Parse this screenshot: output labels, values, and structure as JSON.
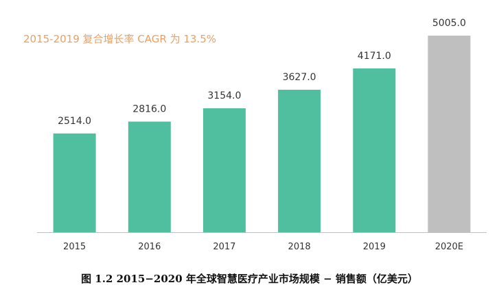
{
  "annotation": "2015-2019 复合增长率 CAGR 为 13.5%",
  "caption": "图 1.2 2015−2020 年全球智慧医疗产业市场规模 − 销售额（亿美元）",
  "chart_data": {
    "type": "bar",
    "categories": [
      "2015",
      "2016",
      "2017",
      "2018",
      "2019",
      "2020E"
    ],
    "values": [
      2514.0,
      2816.0,
      3154.0,
      3627.0,
      4171.0,
      5005.0
    ],
    "value_labels": [
      "2514.0",
      "2816.0",
      "3154.0",
      "3627.0",
      "4171.0",
      "5005.0"
    ],
    "bar_colors": [
      "#4FBFA0",
      "#4FBFA0",
      "#4FBFA0",
      "#4FBFA0",
      "#4FBFA0",
      "#BFBFBF"
    ],
    "ylim": [
      0,
      5005
    ],
    "grid": false,
    "colors": {
      "actual": "#4FBFA0",
      "estimate": "#BFBFBF",
      "annotation": "#E8A064",
      "axis": "#BFBFBF",
      "label": "#333333"
    }
  }
}
